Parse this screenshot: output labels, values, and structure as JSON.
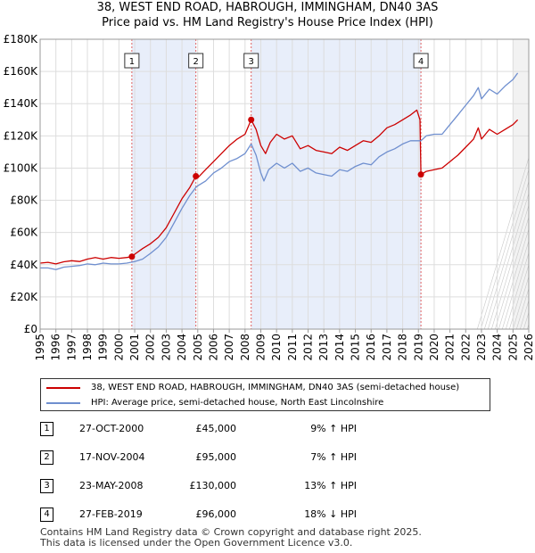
{
  "title": "38, WEST END ROAD, HABROUGH, IMMINGHAM, DN40 3AS",
  "subtitle": "Price paid vs. HM Land Registry's House Price Index (HPI)",
  "chart_data": {
    "type": "line",
    "title": "38, WEST END ROAD, HABROUGH, IMMINGHAM, DN40 3AS",
    "xlim": [
      1995,
      2026
    ],
    "ylim": [
      0,
      180000
    ],
    "x_ticks": [
      "1995",
      "1996",
      "1997",
      "1998",
      "1999",
      "2000",
      "2001",
      "2002",
      "2003",
      "2004",
      "2005",
      "2006",
      "2007",
      "2008",
      "2009",
      "2010",
      "2011",
      "2012",
      "2013",
      "2014",
      "2015",
      "2016",
      "2017",
      "2018",
      "2019",
      "2020",
      "2021",
      "2022",
      "2023",
      "2024",
      "2025",
      "2026"
    ],
    "y_ticks": [
      {
        "value": 0,
        "label": "£0"
      },
      {
        "value": 20000,
        "label": "£20K"
      },
      {
        "value": 40000,
        "label": "£40K"
      },
      {
        "value": 60000,
        "label": "£60K"
      },
      {
        "value": 80000,
        "label": "£80K"
      },
      {
        "value": 100000,
        "label": "£100K"
      },
      {
        "value": 120000,
        "label": "£120K"
      },
      {
        "value": 140000,
        "label": "£140K"
      },
      {
        "value": 160000,
        "label": "£160K"
      },
      {
        "value": 180000,
        "label": "£180K"
      }
    ],
    "shaded_periods": [
      [
        2000.82,
        2004.88
      ],
      [
        2008.39,
        2019.16
      ]
    ],
    "forecast_from": 2025.0,
    "series": [
      {
        "name": "38, WEST END ROAD, HABROUGH, IMMINGHAM, DN40 3AS (semi-detached house)",
        "color": "#cc0000",
        "points": [
          [
            1995.0,
            41000
          ],
          [
            1995.5,
            41500
          ],
          [
            1996.0,
            40500
          ],
          [
            1996.5,
            41800
          ],
          [
            1997.0,
            42500
          ],
          [
            1997.5,
            42000
          ],
          [
            1998.0,
            43500
          ],
          [
            1998.5,
            44500
          ],
          [
            1999.0,
            43500
          ],
          [
            1999.5,
            44500
          ],
          [
            2000.0,
            44000
          ],
          [
            2000.5,
            44500
          ],
          [
            2000.82,
            45000
          ],
          [
            2001.0,
            46500
          ],
          [
            2001.5,
            50000
          ],
          [
            2002.0,
            53000
          ],
          [
            2002.5,
            57000
          ],
          [
            2003.0,
            63000
          ],
          [
            2003.5,
            72000
          ],
          [
            2004.0,
            81000
          ],
          [
            2004.5,
            88000
          ],
          [
            2004.88,
            95000
          ],
          [
            2005.0,
            94000
          ],
          [
            2005.5,
            99000
          ],
          [
            2006.0,
            104000
          ],
          [
            2006.5,
            109000
          ],
          [
            2007.0,
            114000
          ],
          [
            2007.5,
            118000
          ],
          [
            2008.0,
            121000
          ],
          [
            2008.39,
            130000
          ],
          [
            2008.7,
            124000
          ],
          [
            2009.0,
            114000
          ],
          [
            2009.3,
            109000
          ],
          [
            2009.6,
            116000
          ],
          [
            2010.0,
            121000
          ],
          [
            2010.5,
            118000
          ],
          [
            2011.0,
            120000
          ],
          [
            2011.5,
            112000
          ],
          [
            2012.0,
            114000
          ],
          [
            2012.5,
            111000
          ],
          [
            2013.0,
            110000
          ],
          [
            2013.5,
            109000
          ],
          [
            2014.0,
            113000
          ],
          [
            2014.5,
            111000
          ],
          [
            2015.0,
            114000
          ],
          [
            2015.5,
            117000
          ],
          [
            2016.0,
            116000
          ],
          [
            2016.5,
            120000
          ],
          [
            2017.0,
            125000
          ],
          [
            2017.5,
            127000
          ],
          [
            2018.0,
            130000
          ],
          [
            2018.5,
            133000
          ],
          [
            2018.9,
            136000
          ],
          [
            2019.1,
            130000
          ],
          [
            2019.16,
            96000
          ],
          [
            2019.5,
            98000
          ],
          [
            2020.0,
            99000
          ],
          [
            2020.5,
            100000
          ],
          [
            2021.0,
            104000
          ],
          [
            2021.5,
            108000
          ],
          [
            2022.0,
            113000
          ],
          [
            2022.5,
            118000
          ],
          [
            2022.8,
            125000
          ],
          [
            2023.0,
            118000
          ],
          [
            2023.5,
            124000
          ],
          [
            2024.0,
            121000
          ],
          [
            2024.5,
            124000
          ],
          [
            2025.0,
            127000
          ],
          [
            2025.3,
            130000
          ]
        ]
      },
      {
        "name": "HPI: Average price, semi-detached house, North East Lincolnshire",
        "color": "#6f8fcf",
        "points": [
          [
            1995.0,
            38000
          ],
          [
            1995.5,
            38000
          ],
          [
            1996.0,
            37000
          ],
          [
            1996.5,
            38500
          ],
          [
            1997.0,
            39000
          ],
          [
            1997.5,
            39500
          ],
          [
            1998.0,
            40500
          ],
          [
            1998.5,
            40000
          ],
          [
            1999.0,
            41000
          ],
          [
            1999.5,
            40500
          ],
          [
            2000.0,
            40500
          ],
          [
            2000.5,
            41000
          ],
          [
            2001.0,
            42000
          ],
          [
            2001.5,
            43500
          ],
          [
            2002.0,
            47000
          ],
          [
            2002.5,
            51000
          ],
          [
            2003.0,
            57000
          ],
          [
            2003.5,
            66000
          ],
          [
            2004.0,
            75000
          ],
          [
            2004.5,
            83000
          ],
          [
            2004.88,
            88000
          ],
          [
            2005.0,
            89000
          ],
          [
            2005.5,
            92000
          ],
          [
            2006.0,
            97000
          ],
          [
            2006.5,
            100000
          ],
          [
            2007.0,
            104000
          ],
          [
            2007.5,
            106000
          ],
          [
            2008.0,
            109000
          ],
          [
            2008.39,
            115000
          ],
          [
            2008.7,
            108000
          ],
          [
            2009.0,
            97000
          ],
          [
            2009.2,
            92000
          ],
          [
            2009.5,
            99000
          ],
          [
            2010.0,
            103000
          ],
          [
            2010.5,
            100000
          ],
          [
            2011.0,
            103000
          ],
          [
            2011.5,
            98000
          ],
          [
            2012.0,
            100000
          ],
          [
            2012.5,
            97000
          ],
          [
            2013.0,
            96000
          ],
          [
            2013.5,
            95000
          ],
          [
            2014.0,
            99000
          ],
          [
            2014.5,
            98000
          ],
          [
            2015.0,
            101000
          ],
          [
            2015.5,
            103000
          ],
          [
            2016.0,
            102000
          ],
          [
            2016.5,
            107000
          ],
          [
            2017.0,
            110000
          ],
          [
            2017.5,
            112000
          ],
          [
            2018.0,
            115000
          ],
          [
            2018.5,
            117000
          ],
          [
            2019.0,
            117000
          ],
          [
            2019.16,
            117000
          ],
          [
            2019.5,
            120000
          ],
          [
            2020.0,
            121000
          ],
          [
            2020.5,
            121000
          ],
          [
            2021.0,
            127000
          ],
          [
            2021.5,
            133000
          ],
          [
            2022.0,
            139000
          ],
          [
            2022.5,
            145000
          ],
          [
            2022.8,
            150000
          ],
          [
            2023.0,
            143000
          ],
          [
            2023.5,
            149000
          ],
          [
            2024.0,
            146000
          ],
          [
            2024.5,
            151000
          ],
          [
            2025.0,
            155000
          ],
          [
            2025.3,
            159000
          ]
        ]
      }
    ],
    "sales": [
      {
        "n": "1",
        "x": 2000.82,
        "y": 45000
      },
      {
        "n": "2",
        "x": 2004.88,
        "y": 95000
      },
      {
        "n": "3",
        "x": 2008.39,
        "y": 130000
      },
      {
        "n": "4",
        "x": 2019.16,
        "y": 96000
      }
    ]
  },
  "legend": {
    "property": "38, WEST END ROAD, HABROUGH, IMMINGHAM, DN40 3AS (semi-detached house)",
    "hpi": "HPI: Average price, semi-detached house, North East Lincolnshire"
  },
  "sales_table": [
    {
      "n": "1",
      "date": "27-OCT-2000",
      "price": "£45,000",
      "hpi": "9% ↑ HPI"
    },
    {
      "n": "2",
      "date": "17-NOV-2004",
      "price": "£95,000",
      "hpi": "7% ↑ HPI"
    },
    {
      "n": "3",
      "date": "23-MAY-2008",
      "price": "£130,000",
      "hpi": "13% ↑ HPI"
    },
    {
      "n": "4",
      "date": "27-FEB-2019",
      "price": "£96,000",
      "hpi": "18% ↓ HPI"
    }
  ],
  "footer": {
    "line1": "Contains HM Land Registry data © Crown copyright and database right 2025.",
    "line2": "This data is licensed under the Open Government Licence v3.0."
  }
}
